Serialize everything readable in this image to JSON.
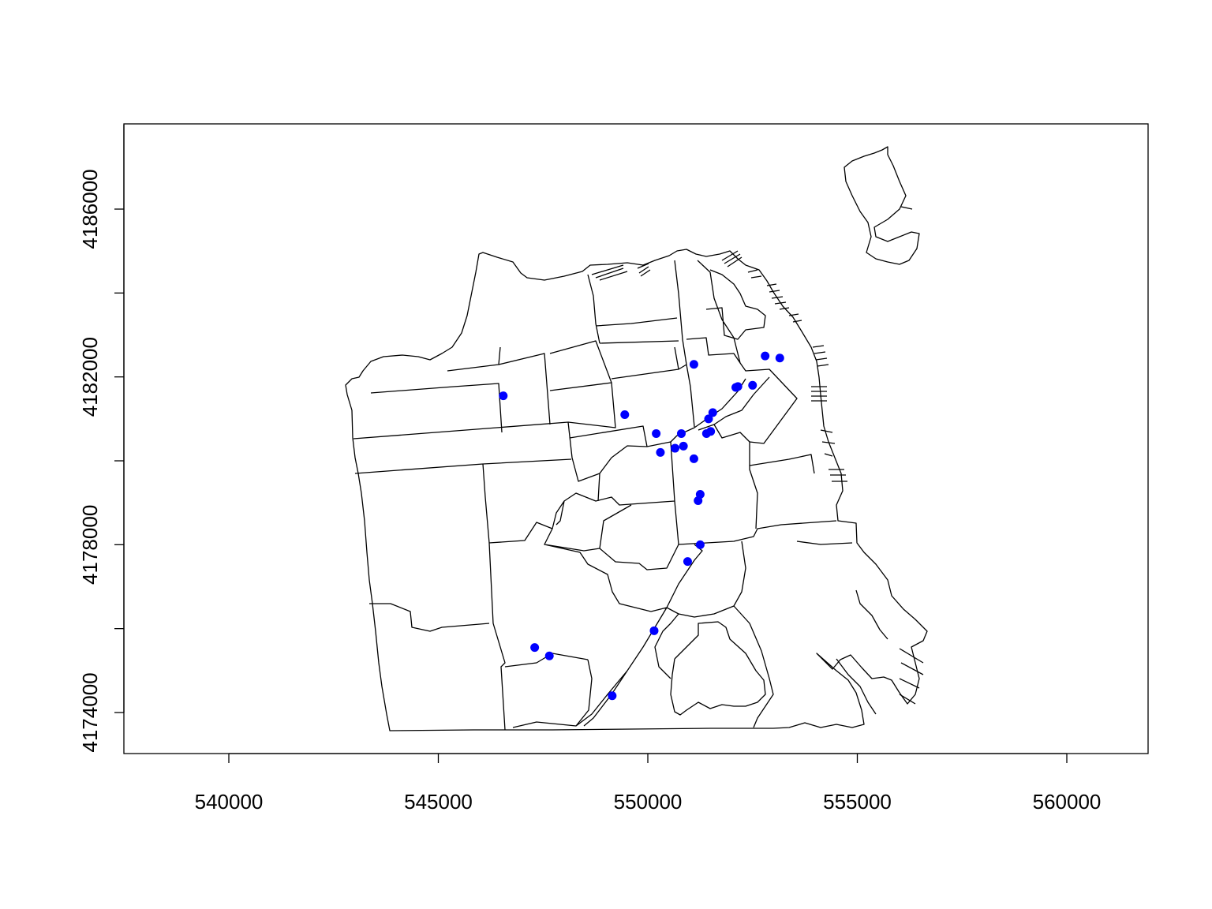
{
  "chart_data": {
    "type": "scatter",
    "title": "",
    "xlabel": "",
    "ylabel": "",
    "xlim": [
      537500,
      562000
    ],
    "ylim": [
      4173000,
      4188000
    ],
    "x_ticks": [
      540000,
      545000,
      550000,
      555000,
      560000
    ],
    "y_ticks": [
      4174000,
      4176000,
      4178000,
      4180000,
      4182000,
      4184000,
      4186000
    ],
    "x_tick_labels": [
      "540000",
      "545000",
      "550000",
      "555000",
      "560000"
    ],
    "y_tick_labels": [
      "4174000",
      "",
      "4178000",
      "",
      "4182000",
      "",
      "4186000"
    ],
    "grid": false,
    "legend": "none",
    "colors": {
      "points": "#0000ff",
      "boundaries": "#000000",
      "background": "#ffffff"
    },
    "points": [
      {
        "x": 546550,
        "y": 4181550
      },
      {
        "x": 549450,
        "y": 4181100
      },
      {
        "x": 550200,
        "y": 4180650
      },
      {
        "x": 550300,
        "y": 4180200
      },
      {
        "x": 550650,
        "y": 4180300
      },
      {
        "x": 550800,
        "y": 4180650
      },
      {
        "x": 550850,
        "y": 4180350
      },
      {
        "x": 551100,
        "y": 4182300
      },
      {
        "x": 551100,
        "y": 4180050
      },
      {
        "x": 551400,
        "y": 4180650
      },
      {
        "x": 551500,
        "y": 4180700
      },
      {
        "x": 551450,
        "y": 4181000
      },
      {
        "x": 551550,
        "y": 4181150
      },
      {
        "x": 552100,
        "y": 4181750
      },
      {
        "x": 552150,
        "y": 4181770
      },
      {
        "x": 552500,
        "y": 4181800
      },
      {
        "x": 552800,
        "y": 4182500
      },
      {
        "x": 553150,
        "y": 4182450
      },
      {
        "x": 551200,
        "y": 4179050
      },
      {
        "x": 551250,
        "y": 4179200
      },
      {
        "x": 551250,
        "y": 4178000
      },
      {
        "x": 550950,
        "y": 4177600
      },
      {
        "x": 550150,
        "y": 4175950
      },
      {
        "x": 547300,
        "y": 4175550
      },
      {
        "x": 547650,
        "y": 4175350
      },
      {
        "x": 549150,
        "y": 4174400
      }
    ]
  }
}
